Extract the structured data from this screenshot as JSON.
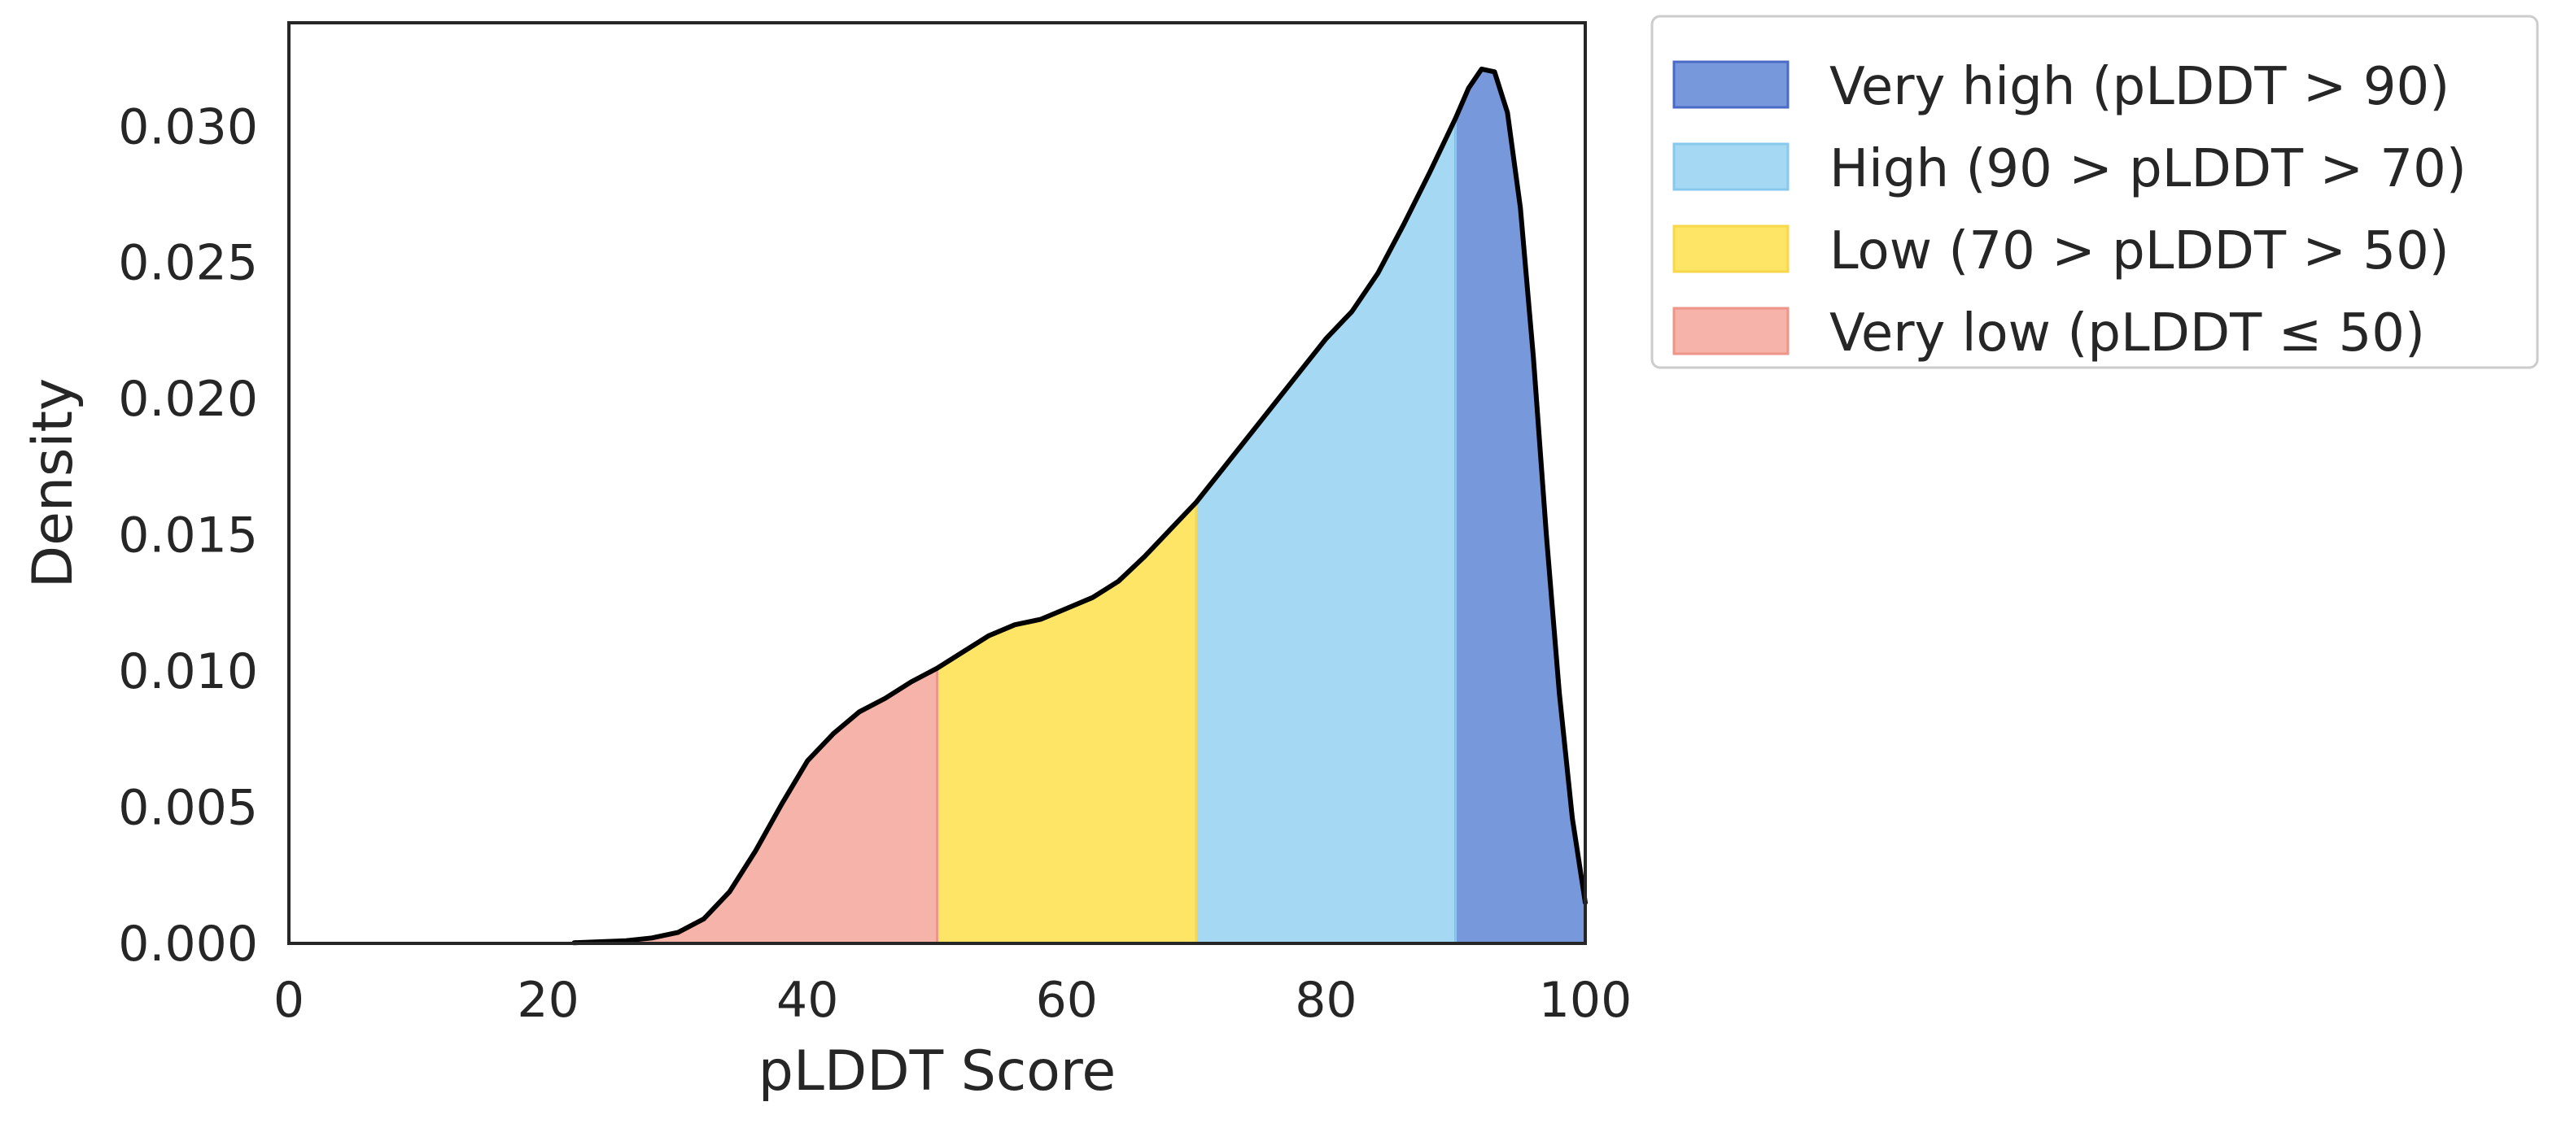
{
  "chart_data": {
    "type": "area",
    "xlabel": "pLDDT Score",
    "ylabel": "Density",
    "xlim": [
      0,
      100
    ],
    "ylim": [
      0,
      0.0338
    ],
    "xticks": [
      0,
      20,
      40,
      60,
      80,
      100
    ],
    "yticks": [
      0.0,
      0.005,
      0.01,
      0.015,
      0.02,
      0.025,
      0.03
    ],
    "ytick_labels": [
      "0.000",
      "0.005",
      "0.010",
      "0.015",
      "0.020",
      "0.025",
      "0.030"
    ],
    "grid": false,
    "legend_position": "outside-top-right",
    "curve_color": "#000000",
    "curve": {
      "x": [
        22,
        26,
        28,
        30,
        32,
        34,
        36,
        38,
        40,
        42,
        44,
        46,
        48,
        50,
        52,
        54,
        56,
        58,
        60,
        62,
        64,
        66,
        68,
        70,
        72,
        74,
        76,
        78,
        80,
        82,
        84,
        86,
        88,
        90,
        91,
        92,
        93,
        94,
        95,
        96,
        97,
        98,
        99,
        100
      ],
      "y": [
        2e-05,
        0.0001,
        0.0002,
        0.0004,
        0.0009,
        0.0019,
        0.0034,
        0.0051,
        0.0067,
        0.0077,
        0.0085,
        0.009,
        0.0096,
        0.0101,
        0.0107,
        0.0113,
        0.0117,
        0.0119,
        0.0123,
        0.0127,
        0.0133,
        0.0142,
        0.0152,
        0.0162,
        0.0174,
        0.0186,
        0.0198,
        0.021,
        0.0222,
        0.0232,
        0.0246,
        0.0264,
        0.0283,
        0.0303,
        0.0314,
        0.0321,
        0.032,
        0.0305,
        0.027,
        0.0215,
        0.015,
        0.0092,
        0.0046,
        0.0015
      ]
    },
    "regions": [
      {
        "name": "Very high (pLDDT > 90)",
        "from": 90,
        "to": 100,
        "fill": "#7898dc",
        "edge": "#4a6ac8"
      },
      {
        "name": "High (90 > pLDDT > 70)",
        "from": 70,
        "to": 90,
        "fill": "#a5d9f3",
        "edge": "#86c9ec"
      },
      {
        "name": "Low (70 > pLDDT > 50)",
        "from": 50,
        "to": 70,
        "fill": "#fee566",
        "edge": "#f6d84a"
      },
      {
        "name": "Very low (pLDDT ≤ 50)",
        "from": 0,
        "to": 50,
        "fill": "#f6b3a9",
        "edge": "#ee958a"
      }
    ]
  }
}
